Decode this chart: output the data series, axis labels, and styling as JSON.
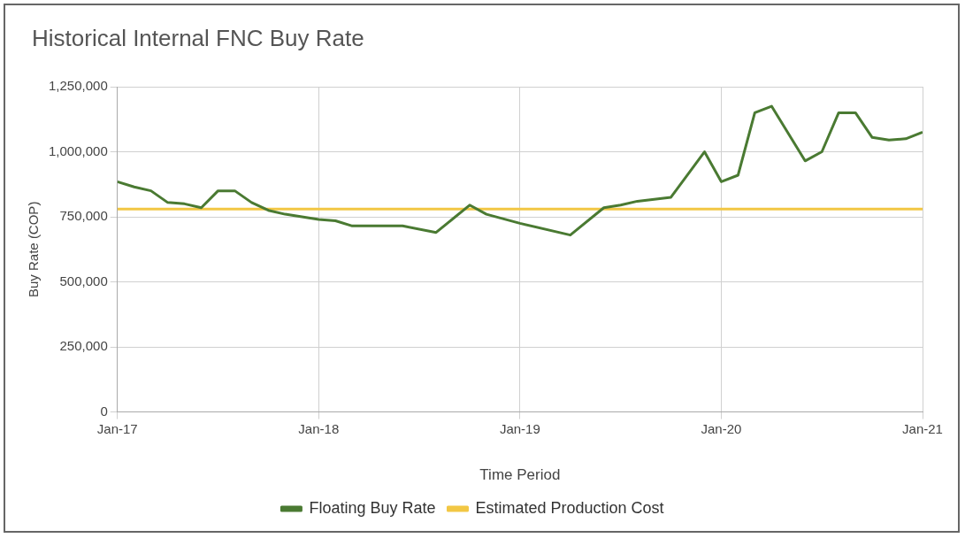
{
  "chart_data": {
    "type": "line",
    "title": "Historical Internal FNC Buy Rate",
    "xlabel": "Time Period",
    "ylabel": "Buy Rate (COP)",
    "xlim": [
      "2017-01",
      "2021-01"
    ],
    "xticks": [
      {
        "value": "2017-01",
        "label": "Jan-17"
      },
      {
        "value": "2018-01",
        "label": "Jan-18"
      },
      {
        "value": "2019-01",
        "label": "Jan-19"
      },
      {
        "value": "2020-01",
        "label": "Jan-20"
      },
      {
        "value": "2021-01",
        "label": "Jan-21"
      }
    ],
    "ylim": [
      0,
      1250000
    ],
    "yticks": [
      {
        "value": 0,
        "label": "0"
      },
      {
        "value": 250000,
        "label": "250,000"
      },
      {
        "value": 500000,
        "label": "500,000"
      },
      {
        "value": 750000,
        "label": "750,000"
      },
      {
        "value": 1000000,
        "label": "1,000,000"
      },
      {
        "value": 1250000,
        "label": "1,250,000"
      }
    ],
    "grid": true,
    "legend": "bottom",
    "marker": "none",
    "line_style": "solid",
    "series": [
      {
        "name": "Floating Buy Rate",
        "color": "#4a7a32",
        "x": [
          "2017-01",
          "2017-02",
          "2017-03",
          "2017-04",
          "2017-05",
          "2017-06",
          "2017-07",
          "2017-08",
          "2017-09",
          "2017-10",
          "2017-11",
          "2018-01",
          "2018-02",
          "2018-03",
          "2018-04",
          "2018-06",
          "2018-08",
          "2018-10",
          "2018-11",
          "2019-01",
          "2019-04",
          "2019-06",
          "2019-07",
          "2019-08",
          "2019-10",
          "2019-12",
          "2020-01",
          "2020-02",
          "2020-03",
          "2020-04",
          "2020-06",
          "2020-07",
          "2020-08",
          "2020-09",
          "2020-10",
          "2020-11",
          "2020-12",
          "2021-01"
        ],
        "values": [
          885000,
          865000,
          850000,
          805000,
          800000,
          785000,
          850000,
          850000,
          805000,
          775000,
          760000,
          740000,
          735000,
          715000,
          715000,
          715000,
          690000,
          795000,
          760000,
          725000,
          680000,
          785000,
          795000,
          810000,
          825000,
          1000000,
          885000,
          910000,
          1150000,
          1175000,
          965000,
          1000000,
          1150000,
          1150000,
          1055000,
          1045000,
          1050000,
          1075000
        ]
      },
      {
        "name": "Estimated Production Cost",
        "color": "#f2c744",
        "x": [
          "2017-01",
          "2021-01"
        ],
        "values": [
          780000,
          780000
        ]
      }
    ]
  }
}
